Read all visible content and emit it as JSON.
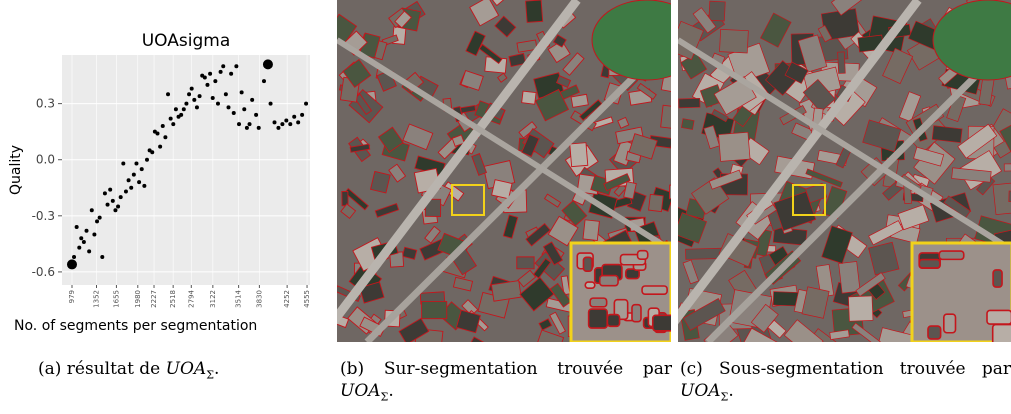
{
  "chart_data": {
    "type": "scatter",
    "title": "UOAsigma",
    "xlabel": "No. of segments per segmentation",
    "ylabel": "Quality",
    "xlim": [
      827,
      4600
    ],
    "ylim": [
      -0.67,
      0.56
    ],
    "xticks": [
      979,
      1352,
      1655,
      1980,
      2227,
      2518,
      2794,
      3122,
      3514,
      3830,
      4252,
      4555
    ],
    "yticks": [
      -0.6,
      -0.3,
      {
        "value": 0,
        "label": "0.0"
      },
      0.3
    ],
    "grid": true,
    "series": [
      {
        "color": "#000000",
        "size": 2,
        "x": [
          1010,
          1050,
          1090,
          1120,
          1160,
          1200,
          1240,
          1280,
          1320,
          1360,
          1400,
          1440,
          1480,
          1520,
          1560,
          1600,
          1640,
          1680,
          1720,
          1760,
          1800,
          1840,
          1880,
          1920,
          1960,
          2000,
          2040,
          2080,
          2120,
          2160,
          2200,
          2240,
          2280,
          2320,
          2360,
          2400,
          2440,
          2480,
          2520,
          2560,
          2600,
          2640,
          2680,
          2720,
          2760,
          2800,
          2840,
          2880,
          2920,
          2960,
          3000,
          3040,
          3080,
          3120,
          3160,
          3200,
          3240,
          3280,
          3320,
          3360,
          3400,
          3440,
          3480,
          3520,
          3560,
          3600,
          3640,
          3680,
          3720,
          3780,
          3820,
          3900,
          4000,
          4060,
          4120,
          4180,
          4240,
          4300,
          4360,
          4420,
          4480,
          4540
        ],
        "values": [
          -0.52,
          -0.36,
          -0.47,
          -0.42,
          -0.44,
          -0.38,
          -0.49,
          -0.27,
          -0.4,
          -0.33,
          -0.31,
          -0.52,
          -0.18,
          -0.24,
          -0.16,
          -0.22,
          -0.27,
          -0.25,
          -0.2,
          -0.02,
          -0.17,
          -0.11,
          -0.15,
          -0.08,
          -0.02,
          -0.12,
          -0.05,
          -0.14,
          0.0,
          0.05,
          0.04,
          0.15,
          0.14,
          0.07,
          0.18,
          0.12,
          0.35,
          0.22,
          0.19,
          0.27,
          0.23,
          0.24,
          0.27,
          0.3,
          0.35,
          0.38,
          0.32,
          0.28,
          0.34,
          0.45,
          0.44,
          0.4,
          0.46,
          0.33,
          0.42,
          0.3,
          0.47,
          0.5,
          0.35,
          0.28,
          0.46,
          0.25,
          0.5,
          0.19,
          0.36,
          0.27,
          0.17,
          0.19,
          0.32,
          0.24,
          0.17,
          0.42,
          0.3,
          0.2,
          0.17,
          0.19,
          0.21,
          0.19,
          0.23,
          0.2,
          0.24,
          0.3
        ]
      },
      {
        "color": "#000000",
        "size": 5,
        "x": [
          979,
          3960
        ],
        "values": [
          -0.56,
          0.51
        ]
      }
    ]
  },
  "captions": [
    {
      "prefix": "(a) résultat de",
      "math": "UOA",
      "sub": "Σ",
      "suffix": "."
    },
    {
      "prefix": "(b) Sur-segmentation trouvée par",
      "math": "UOA",
      "sub": "Σ",
      "suffix": "."
    },
    {
      "prefix": "(c) Sous-segmentation trouvée par",
      "math": "UOA",
      "sub": "Σ",
      "suffix": "."
    }
  ]
}
